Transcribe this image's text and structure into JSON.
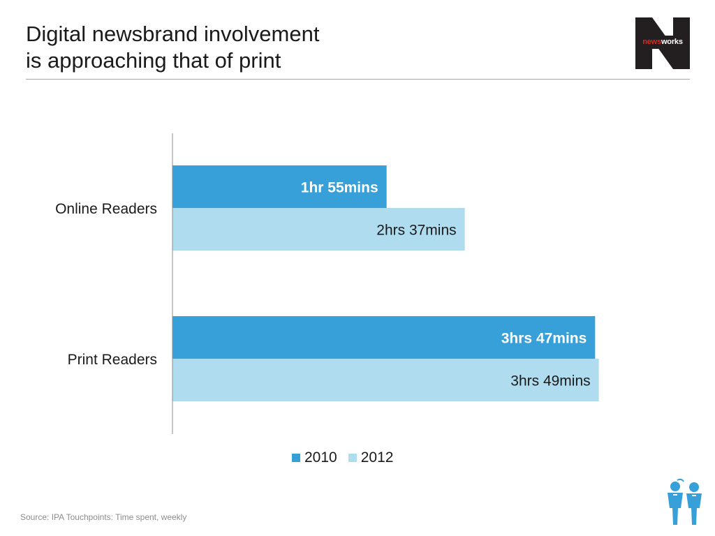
{
  "title": {
    "line1": "Digital newsbrand involvement",
    "line2": "is approaching that of print"
  },
  "logo": {
    "text_red": "news",
    "text_white": "works",
    "bg_color": "#231f20",
    "icon": "newsworks-n-logo"
  },
  "source": "Source: IPA Touchpoints: Time spent, weekly",
  "decor_icon": "two-readers-icon",
  "colors": {
    "series_2010": "#37a0d8",
    "series_2012": "#b0dcf0"
  },
  "chart_data": {
    "type": "bar",
    "orientation": "horizontal",
    "categories": [
      "Online Readers",
      "Print Readers"
    ],
    "unit": "minutes per week",
    "series": [
      {
        "name": "2010",
        "color": "#37a0d8",
        "values": [
          115,
          227
        ],
        "data_labels": [
          "1hr 55mins",
          "3hrs 47mins"
        ]
      },
      {
        "name": "2012",
        "color": "#b0dcf0",
        "values": [
          157,
          229
        ],
        "data_labels": [
          "2hrs 37mins",
          "3hrs 49mins"
        ]
      }
    ],
    "xlim": [
      0,
      240
    ],
    "grid": false,
    "legend_position": "bottom"
  }
}
